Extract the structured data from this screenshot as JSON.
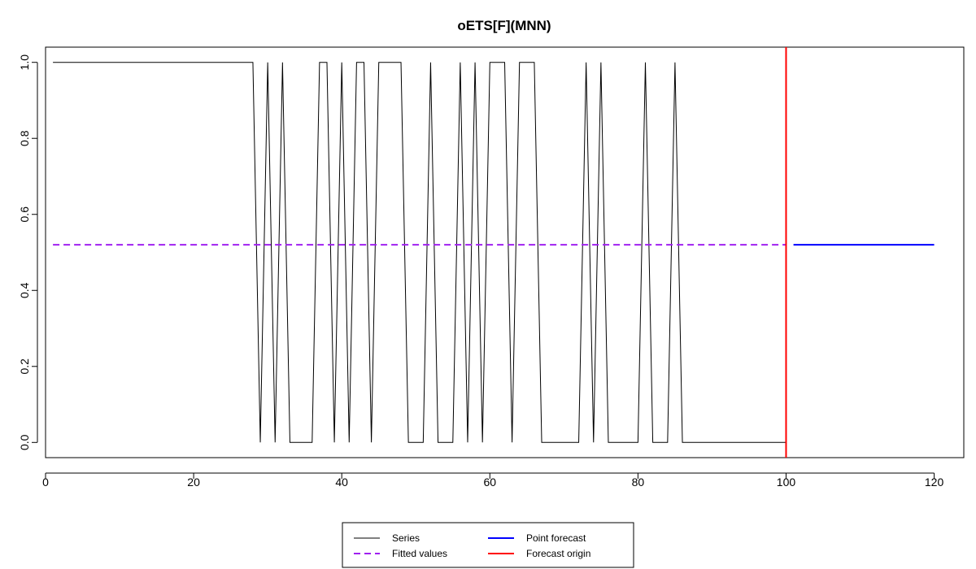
{
  "chart_data": {
    "type": "line",
    "title": "oETS[F](MNN)",
    "xlabel": "",
    "ylabel": "",
    "xlim": [
      0,
      124
    ],
    "ylim": [
      -0.04,
      1.04
    ],
    "x_ticks": [
      0,
      20,
      40,
      60,
      80,
      100,
      120
    ],
    "y_ticks": [
      0.0,
      0.2,
      0.4,
      0.6,
      0.8,
      1.0
    ],
    "x_tick_labels": [
      "0",
      "20",
      "40",
      "60",
      "80",
      "100",
      "120"
    ],
    "y_tick_labels": [
      "0.0",
      "0.2",
      "0.4",
      "0.6",
      "0.8",
      "1.0"
    ],
    "grid": false,
    "legend_position": "bottom",
    "forecast_origin_x": 100,
    "series": [
      {
        "name": "Series",
        "color": "#000000",
        "style": "solid",
        "x": [
          1,
          2,
          3,
          4,
          5,
          6,
          7,
          8,
          9,
          10,
          11,
          12,
          13,
          14,
          15,
          16,
          17,
          18,
          19,
          20,
          21,
          22,
          23,
          24,
          25,
          26,
          27,
          28,
          29,
          30,
          31,
          32,
          33,
          34,
          35,
          36,
          37,
          38,
          39,
          40,
          41,
          42,
          43,
          44,
          45,
          46,
          47,
          48,
          49,
          50,
          51,
          52,
          53,
          54,
          55,
          56,
          57,
          58,
          59,
          60,
          61,
          62,
          63,
          64,
          65,
          66,
          67,
          68,
          69,
          70,
          71,
          72,
          73,
          74,
          75,
          76,
          77,
          78,
          79,
          80,
          81,
          82,
          83,
          84,
          85,
          86,
          87,
          88,
          89,
          90,
          91,
          92,
          93,
          94,
          95,
          96,
          97,
          98,
          99,
          100
        ],
        "values": [
          1,
          1,
          1,
          1,
          1,
          1,
          1,
          1,
          1,
          1,
          1,
          1,
          1,
          1,
          1,
          1,
          1,
          1,
          1,
          1,
          1,
          1,
          1,
          1,
          1,
          1,
          1,
          1,
          0,
          1,
          0,
          1,
          0,
          0,
          0,
          0,
          1,
          1,
          0,
          1,
          0,
          1,
          1,
          0,
          1,
          1,
          1,
          1,
          0,
          0,
          0,
          1,
          0,
          0,
          0,
          1,
          0,
          1,
          0,
          1,
          1,
          1,
          0,
          1,
          1,
          1,
          0,
          0,
          0,
          0,
          0,
          0,
          1,
          0,
          1,
          0,
          0,
          0,
          0,
          0,
          1,
          0,
          0,
          0,
          1,
          0,
          0,
          0,
          0,
          0,
          0,
          0,
          0,
          0,
          0,
          0,
          0,
          0,
          0,
          0
        ]
      },
      {
        "name": "Fitted values",
        "color": "#A020F0",
        "style": "dashed",
        "x": [
          1,
          100
        ],
        "values": [
          0.52,
          0.52
        ]
      },
      {
        "name": "Point forecast",
        "color": "#0000FF",
        "style": "solid",
        "x": [
          101,
          120
        ],
        "values": [
          0.52,
          0.52
        ]
      },
      {
        "name": "Forecast origin",
        "color": "#FF0000",
        "style": "solid",
        "x": [
          100,
          100
        ],
        "values": [
          -0.04,
          1.04
        ]
      }
    ]
  }
}
